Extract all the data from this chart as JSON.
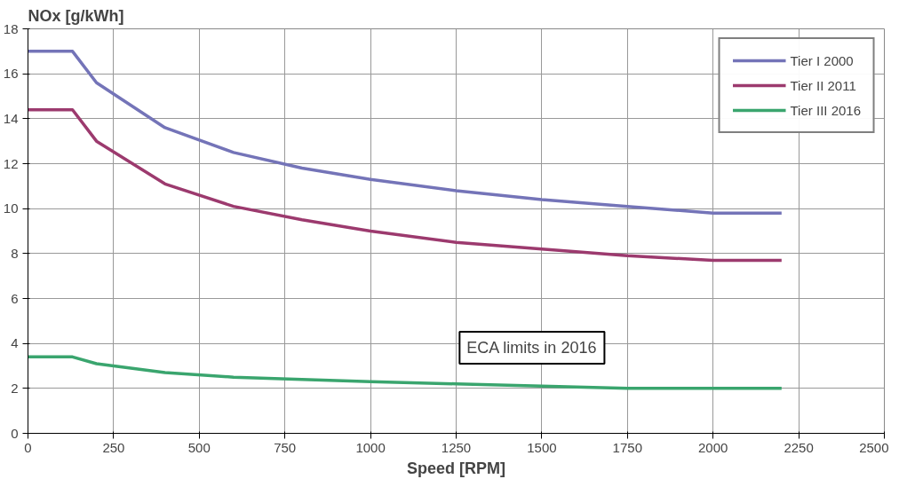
{
  "chart_data": {
    "type": "line",
    "xlabel": "Speed [RPM]",
    "ylabel": "NOx [g/kWh]",
    "xlim": [
      0,
      2500
    ],
    "xticks": [
      0,
      250,
      500,
      750,
      1000,
      1250,
      1500,
      1750,
      2000,
      2250,
      2500
    ],
    "ylim": [
      0,
      18
    ],
    "yticks": [
      0,
      2,
      4,
      6,
      8,
      10,
      12,
      14,
      16,
      18
    ],
    "x": [
      0,
      130,
      200,
      400,
      600,
      800,
      1000,
      1250,
      1500,
      1750,
      2000,
      2200
    ],
    "series": [
      {
        "name": "Tier I 2000",
        "color": "#7474b8",
        "values": [
          17.0,
          17.0,
          15.6,
          13.6,
          12.5,
          11.8,
          11.3,
          10.8,
          10.4,
          10.1,
          9.8,
          9.8
        ]
      },
      {
        "name": "Tier II 2011",
        "color": "#9c3a6e",
        "values": [
          14.4,
          14.4,
          13.0,
          11.1,
          10.1,
          9.5,
          9.0,
          8.5,
          8.2,
          7.9,
          7.7,
          7.7
        ]
      },
      {
        "name": "Tier III 2016",
        "color": "#3aa56e",
        "values": [
          3.4,
          3.4,
          3.1,
          2.7,
          2.5,
          2.4,
          2.3,
          2.2,
          2.1,
          2.0,
          2.0,
          2.0
        ]
      }
    ],
    "annotations": [
      "ECA limits in 2016"
    ],
    "grid": true,
    "legend": "top right",
    "marker": "none",
    "line_style": "solid"
  }
}
